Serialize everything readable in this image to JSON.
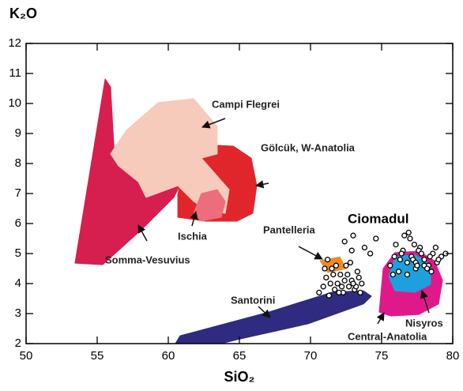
{
  "chart_data": {
    "type": "scatter",
    "xlabel": "SiO₂",
    "ylabel": "K₂O",
    "xlim": [
      50,
      80
    ],
    "xticks": [
      50,
      55,
      60,
      65,
      70,
      75,
      80
    ],
    "ylim": [
      2,
      12
    ],
    "yticks": [
      2,
      3,
      4,
      5,
      6,
      7,
      8,
      9,
      10,
      11,
      12
    ],
    "fields": [
      {
        "name": "Gölcük, W-Anatolia",
        "color": "#e1262b",
        "x": [
          60.67,
          61.5,
          62.33,
          64.56,
          65.83,
          66.22,
          65.94,
          64.83,
          62.61,
          60.67
        ],
        "y": [
          7.0,
          8.45,
          8.63,
          8.58,
          8.18,
          7.26,
          6.34,
          6.08,
          6.08,
          6.21
        ]
      },
      {
        "name": "Somma-Vesuvius",
        "color": "#d61f4e",
        "x": [
          53.44,
          54.83,
          55.56,
          55.94,
          56.22,
          59.56,
          61.5,
          60.39,
          58.17,
          55.39
        ],
        "y": [
          4.68,
          8.71,
          10.82,
          10.55,
          8.18,
          9.11,
          7.92,
          6.87,
          5.82,
          4.63
        ]
      },
      {
        "name": "Campi Flegrei",
        "color": "#f6cbbb",
        "x": [
          55.94,
          57.06,
          59.28,
          61.78,
          63.44,
          63.44,
          62.33,
          64.28,
          64.0,
          62.61,
          61.78,
          60.67,
          58.44,
          57.89,
          56.5
        ],
        "y": [
          8.32,
          9.11,
          10.03,
          10.16,
          9.24,
          8.32,
          8.18,
          7.13,
          6.34,
          6.47,
          6.74,
          7.26,
          6.87,
          7.39,
          7.92
        ]
      },
      {
        "name": "Ischia",
        "color": "#ec6d7b",
        "x": [
          61.78,
          62.33,
          63.44,
          64.0,
          63.72,
          62.33
        ],
        "y": [
          6.34,
          7.0,
          7.13,
          6.74,
          6.21,
          6.08
        ]
      },
      {
        "name": "Santorini",
        "color": "#2f2b80",
        "x": [
          60.5,
          60.83,
          67.06,
          71.5,
          73.72,
          74.28,
          73.72,
          69.83,
          64.83,
          63.72
        ],
        "y": [
          2.0,
          2.26,
          3.05,
          3.71,
          3.76,
          3.58,
          3.32,
          2.66,
          2.13,
          2.0
        ]
      },
      {
        "name": "Pantelleria",
        "color": "#f08a24",
        "x": [
          70.67,
          72.06,
          72.5,
          71.22
        ],
        "y": [
          4.76,
          4.89,
          4.5,
          4.37
        ]
      },
      {
        "name": "Central-Anatolia",
        "color": "#e0198a",
        "x": [
          74.83,
          75.11,
          75.94,
          77.61,
          78.72,
          79.28,
          79.0,
          77.61,
          75.67
        ],
        "y": [
          3.05,
          4.5,
          5.03,
          5.08,
          4.76,
          4.11,
          3.32,
          2.97,
          2.92
        ]
      },
      {
        "name": "Nisyros",
        "color": "#1ea0dc",
        "x": [
          75.5,
          75.94,
          77.33,
          78.44,
          78.44,
          77.33,
          75.94
        ],
        "y": [
          4.24,
          4.89,
          4.97,
          4.63,
          3.97,
          3.71,
          3.76
        ]
      }
    ],
    "points": {
      "name": "Ciomadul",
      "x": [
        70.6,
        70.9,
        71.1,
        71.3,
        71.5,
        71.7,
        71.9,
        72.1,
        72.3,
        72.5,
        72.7,
        72.9,
        73.1,
        73.3,
        73.5,
        71.2,
        71.6,
        72.0,
        72.4,
        72.8,
        73.2,
        71.4,
        71.8,
        72.2,
        72.6,
        73.0,
        73.4,
        71.0,
        72.9,
        73.6,
        72.4,
        73.0,
        73.8,
        74.2,
        74.6,
        75.6,
        75.9,
        76.2,
        76.5,
        76.8,
        77.1,
        77.4,
        77.7,
        78.0,
        78.3,
        78.6,
        78.9,
        79.2,
        79.5,
        76.0,
        76.4,
        76.8,
        77.2,
        77.6,
        78.0,
        78.4,
        78.8,
        76.6,
        77.0,
        77.4,
        77.8,
        78.2,
        75.8,
        76.3,
        77.3,
        78.5,
        79.0,
        76.9,
        77.5
      ],
      "y": [
        3.7,
        3.9,
        4.2,
        3.6,
        4.5,
        3.8,
        4.0,
        4.3,
        3.7,
        4.6,
        3.9,
        4.1,
        3.8,
        4.4,
        3.7,
        4.8,
        4.3,
        3.7,
        4.1,
        4.7,
        3.9,
        4.0,
        4.6,
        3.9,
        4.3,
        4.0,
        4.2,
        4.5,
        5.1,
        4.0,
        5.4,
        5.6,
        5.2,
        5.0,
        5.5,
        4.6,
        4.9,
        4.4,
        5.1,
        4.7,
        4.9,
        4.5,
        5.2,
        4.8,
        4.6,
        5.0,
        4.7,
        4.9,
        5.0,
        5.3,
        5.0,
        4.3,
        4.8,
        5.1,
        4.6,
        4.9,
        5.2,
        5.6,
        5.5,
        4.7,
        5.0,
        4.5,
        4.3,
        4.8,
        5.3,
        4.4,
        4.8,
        5.7,
        4.6
      ]
    }
  }
}
